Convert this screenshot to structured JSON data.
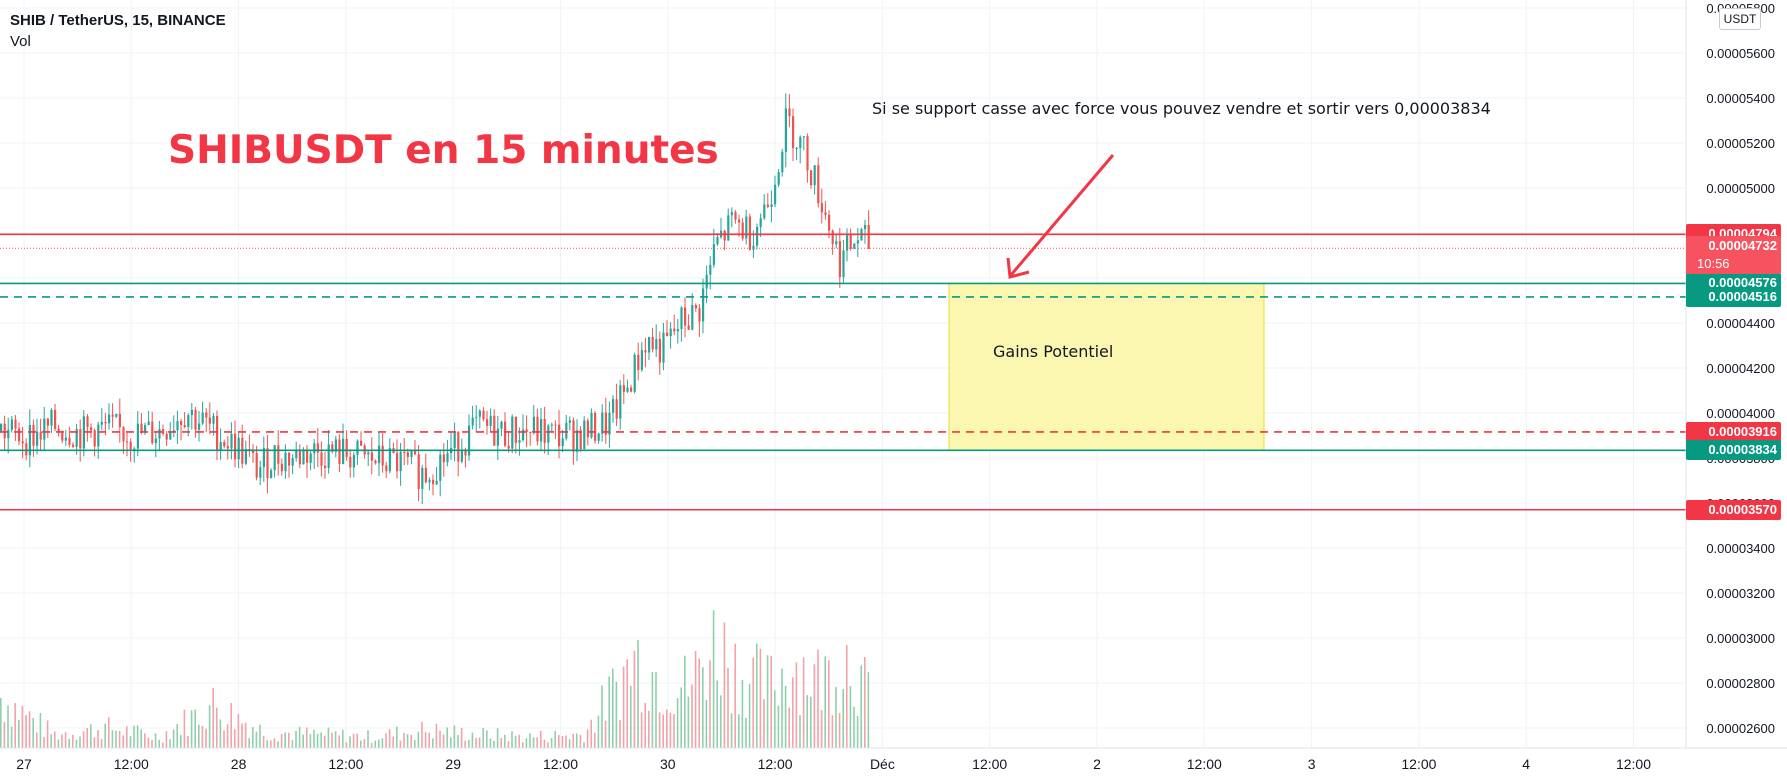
{
  "header": {
    "symbol": "SHIB / TetherUS, 15, BINANCE",
    "indicator": "Vol"
  },
  "colors": {
    "red": "#f23645",
    "teal": "#089981",
    "candle_up": "#26a69a",
    "candle_down": "#ef5350",
    "vol_up": "#8fcfab",
    "vol_down": "#f2a3a8",
    "zone_fill": "#fbf7b0",
    "zone_border": "#e6df2b",
    "grid": "#f0f3fa"
  },
  "annotations": {
    "title": "SHIBUSDT en 15 minutes",
    "note": "Si se support casse avec force vous pouvez vendre et sortir vers 0,00003834",
    "zone_label": "Gains Potentiel"
  },
  "price_axis": {
    "currency": "USDT",
    "current_price": "0.00004732",
    "countdown": "10:56"
  },
  "chart_data": {
    "type": "line",
    "title": "SHIBUSDT en 15 minutes",
    "xlabel": "",
    "ylabel": "",
    "x_ticks": [
      "27",
      "12:00",
      "28",
      "12:00",
      "29",
      "12:00",
      "30",
      "12:00",
      "Déc",
      "12:00",
      "2",
      "12:00",
      "3",
      "12:00",
      "4",
      "12:00"
    ],
    "y_ticks": [
      "0.00005800",
      "0.00005600",
      "0.00005400",
      "0.00005200",
      "0.00005000",
      "0.00004800",
      "0.00004600",
      "0.00004400",
      "0.00004200",
      "0.00004000",
      "0.00003800",
      "0.00003600",
      "0.00003400",
      "0.00003200",
      "0.00003000",
      "0.00002800",
      "0.00002600"
    ],
    "ylim": [
      2.48e-05,
      5.86e-05
    ],
    "xlim": [
      "2021-11-26 21:00",
      "2021-12-04 20:00"
    ],
    "grid": true,
    "series": [
      {
        "type": "line",
        "x": [
          "2021-11-26 21:00",
          "2021-11-27 00:00",
          "2021-11-27 03:00",
          "2021-11-27 06:00",
          "2021-11-27 09:00",
          "2021-11-27 12:00",
          "2021-11-27 15:00",
          "2021-11-27 18:00",
          "2021-11-27 21:00",
          "2021-11-28 00:00",
          "2021-11-28 02:00",
          "2021-11-28 04:00",
          "2021-11-28 06:00",
          "2021-11-28 08:00",
          "2021-11-28 12:00",
          "2021-11-28 15:00",
          "2021-11-28 18:00",
          "2021-11-28 21:00",
          "2021-11-29 00:00",
          "2021-11-29 03:00",
          "2021-11-29 06:00",
          "2021-11-29 09:00",
          "2021-11-29 12:00",
          "2021-11-29 15:00",
          "2021-11-29 18:00",
          "2021-11-29 20:00",
          "2021-11-29 22:00",
          "2021-11-30 00:00",
          "2021-11-30 02:00",
          "2021-11-30 04:00",
          "2021-11-30 06:00",
          "2021-11-30 08:00",
          "2021-11-30 10:00",
          "2021-11-30 12:00",
          "2021-11-30 14:00",
          "2021-11-30 16:00",
          "2021-11-30 18:00",
          "2021-11-30 20:00",
          "2021-11-30 22:00",
          "2021-12-01 00:00"
        ],
        "values": [
          3.92e-05,
          3.89e-05,
          3.94e-05,
          3.91e-05,
          3.93e-05,
          3.9e-05,
          3.92e-05,
          4.01e-05,
          3.92e-05,
          3.84e-05,
          3.75e-05,
          3.81e-05,
          3.8e-05,
          3.83e-05,
          3.82e-05,
          3.79e-05,
          3.78e-05,
          3.73e-05,
          3.83e-05,
          3.94e-05,
          3.91e-05,
          3.92e-05,
          3.9e-05,
          3.91e-05,
          3.96e-05,
          4.12e-05,
          4.32e-05,
          4.28e-05,
          4.4e-05,
          4.45e-05,
          4.75e-05,
          4.85e-05,
          4.8e-05,
          4.95e-05,
          5.3e-05,
          5.17e-05,
          4.94e-05,
          4.68e-05,
          4.78e-05,
          4.73e-05
        ]
      }
    ],
    "volume": {
      "name": "Vol",
      "x": [
        "2021-11-26 21:00",
        "2021-11-27 03:00",
        "2021-11-27 09:00",
        "2021-11-27 15:00",
        "2021-11-27 21:00",
        "2021-11-28 03:00",
        "2021-11-28 09:00",
        "2021-11-28 15:00",
        "2021-11-28 21:00",
        "2021-11-29 03:00",
        "2021-11-29 09:00",
        "2021-11-29 15:00",
        "2021-11-29 21:00",
        "2021-11-30 00:00",
        "2021-11-30 03:00",
        "2021-11-30 06:00",
        "2021-11-30 09:00",
        "2021-11-30 12:00",
        "2021-11-30 15:00",
        "2021-11-30 18:00",
        "2021-11-30 21:00",
        "2021-12-01 00:00"
      ],
      "values": [
        0.45,
        0.12,
        0.18,
        0.1,
        0.38,
        0.14,
        0.12,
        0.1,
        0.16,
        0.12,
        0.1,
        0.12,
        0.8,
        0.6,
        0.55,
        0.95,
        0.65,
        0.55,
        0.75,
        0.6,
        0.82,
        0.35
      ]
    },
    "hlines": [
      {
        "value": 4.794e-05,
        "label": "0.00004794",
        "style": "solid",
        "color": "red"
      },
      {
        "value": 4.576e-05,
        "label": "0.00004576",
        "style": "solid",
        "color": "teal"
      },
      {
        "value": 4.516e-05,
        "label": "0.00004516",
        "style": "dashed",
        "color": "teal"
      },
      {
        "value": 3.916e-05,
        "label": "0.00003916",
        "style": "dashed",
        "color": "red"
      },
      {
        "value": 3.834e-05,
        "label": "0.00003834",
        "style": "solid",
        "color": "teal"
      },
      {
        "value": 3.57e-05,
        "label": "0.00003570",
        "style": "solid",
        "color": "red"
      }
    ],
    "zone": {
      "from": "2021-12-01 08:00",
      "to": "2021-12-02 14:00",
      "top": 4.576e-05,
      "bottom": 3.834e-05
    }
  }
}
